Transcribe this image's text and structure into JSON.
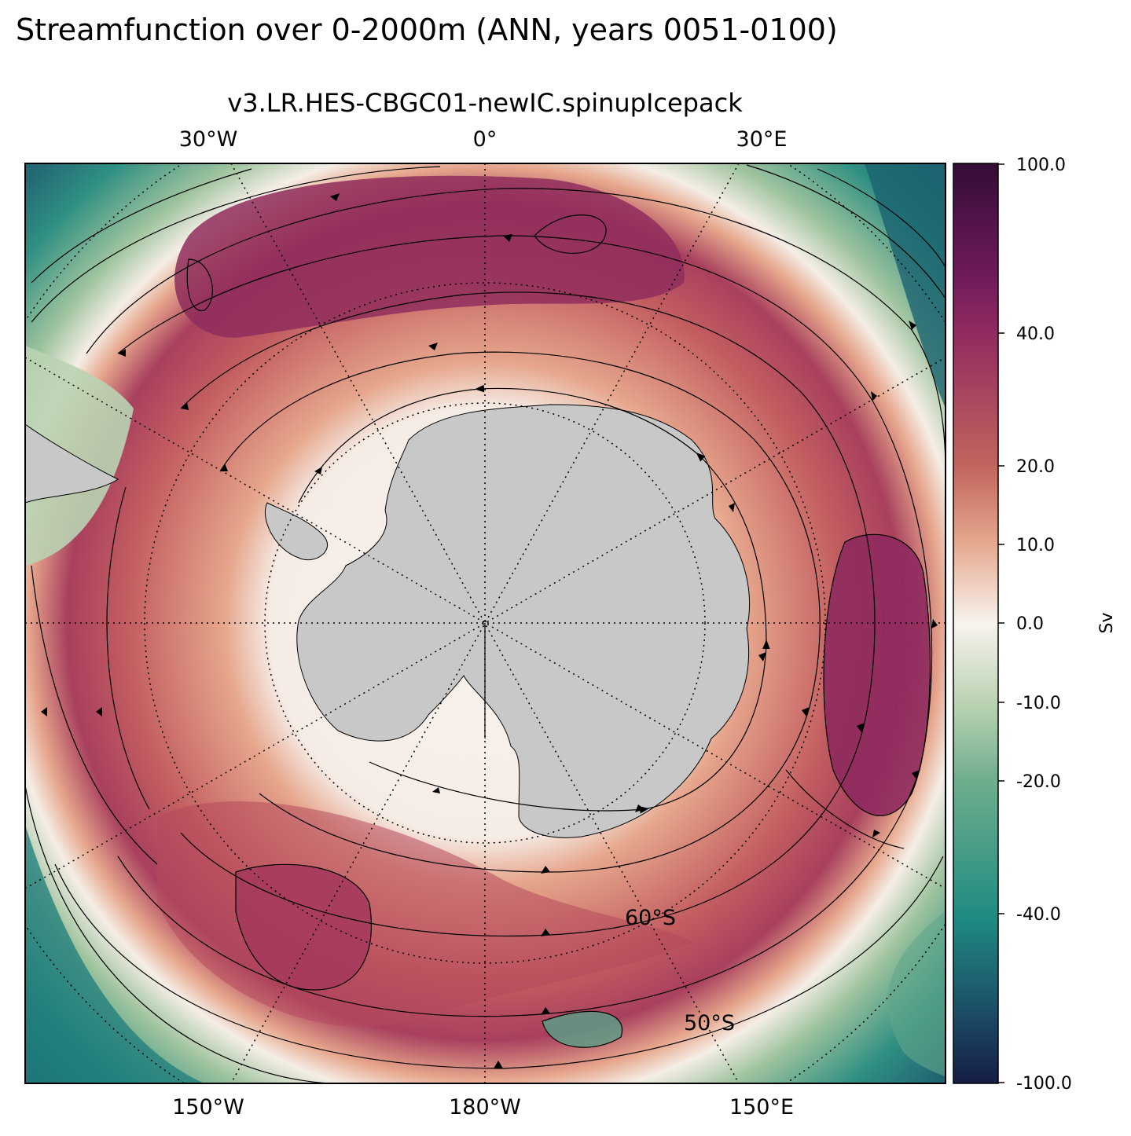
{
  "figure": {
    "suptitle": "Streamfunction over 0-2000m (ANN, years 0051-0100)",
    "title": "v3.LR.HES-CBGC01-newIC.spinupIcepack"
  },
  "map": {
    "projection": "south polar stereographic",
    "lon_labels_top": [
      "30°W",
      "0°",
      "30°E"
    ],
    "lon_labels_bottom": [
      "150°W",
      "180°W",
      "150°E"
    ],
    "lat_labels": [
      "60°S",
      "50°S"
    ],
    "land_color": "#c8c8c8",
    "gridlines": "dotted"
  },
  "colorbar": {
    "label": "Sv",
    "ticks": [
      "100.0",
      "40.0",
      "20.0",
      "10.0",
      "0.0",
      "-10.0",
      "-20.0",
      "-40.0",
      "-100.0"
    ],
    "tick_values": [
      100,
      40,
      20,
      10,
      0,
      -10,
      -20,
      -40,
      -100
    ],
    "colormap": "curl (teal-white-maroon)",
    "colors": {
      "min": "#151d44",
      "neg_mid": "#1d8a80",
      "neg_low": "#a9c9a6",
      "zero": "#f8f3ee",
      "pos_low": "#e6a48a",
      "pos_mid": "#b44a5c",
      "max": "#340d35"
    }
  }
}
